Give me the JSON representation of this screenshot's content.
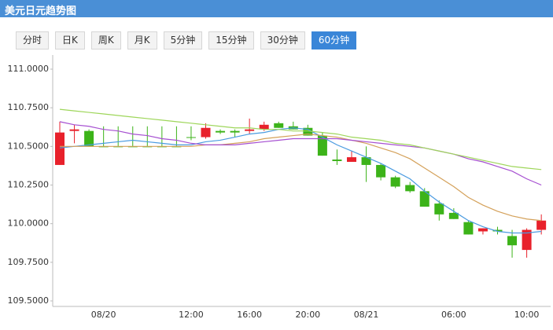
{
  "header": {
    "title": "美元日元趋势图"
  },
  "tabs": {
    "items": [
      "分时",
      "日K",
      "周K",
      "月K",
      "5分钟",
      "15分钟",
      "30分钟",
      "60分钟"
    ],
    "active": 7
  },
  "chart_data": {
    "type": "candlestick",
    "categories": [
      null,
      null,
      null,
      "08/20",
      null,
      null,
      null,
      null,
      null,
      "12:00",
      null,
      null,
      null,
      "16:00",
      null,
      null,
      null,
      "20:00",
      null,
      null,
      null,
      "08/21",
      null,
      null,
      null,
      null,
      null,
      "06:00",
      null,
      null,
      null,
      null,
      "10:00",
      null
    ],
    "open": [
      110.38,
      110.6,
      110.6,
      110.5,
      110.5,
      110.5,
      110.5,
      110.5,
      110.5,
      110.56,
      110.56,
      110.6,
      110.6,
      110.6,
      110.61,
      110.65,
      110.63,
      110.62,
      110.57,
      110.415,
      110.4,
      110.43,
      110.38,
      110.3,
      110.25,
      110.21,
      110.13,
      110.07,
      110.01,
      109.95,
      109.96,
      109.92,
      109.83,
      109.96
    ],
    "high": [
      110.66,
      110.64,
      110.61,
      110.63,
      110.63,
      110.63,
      110.63,
      110.63,
      110.63,
      110.63,
      110.65,
      110.61,
      110.61,
      110.68,
      110.66,
      110.66,
      110.66,
      110.64,
      110.59,
      110.48,
      110.47,
      110.5,
      110.39,
      110.31,
      110.27,
      110.23,
      110.15,
      110.1,
      110.02,
      109.97,
      109.98,
      109.96,
      109.97,
      110.06
    ],
    "low": [
      110.38,
      110.52,
      110.5,
      110.5,
      110.5,
      110.5,
      110.5,
      110.5,
      110.5,
      110.54,
      110.55,
      110.58,
      110.56,
      110.58,
      110.6,
      110.62,
      110.61,
      110.57,
      110.44,
      110.38,
      110.4,
      110.27,
      110.28,
      110.23,
      110.2,
      110.11,
      110.02,
      110.03,
      109.93,
      109.93,
      109.93,
      109.78,
      109.78,
      109.93
    ],
    "close": [
      110.59,
      110.61,
      110.5,
      110.5,
      110.5,
      110.5,
      110.5,
      110.5,
      110.5,
      110.56,
      110.62,
      110.59,
      110.59,
      110.61,
      110.64,
      110.62,
      110.61,
      110.57,
      110.44,
      110.405,
      110.43,
      110.38,
      110.3,
      110.24,
      110.21,
      110.11,
      110.06,
      110.03,
      109.93,
      109.97,
      109.95,
      109.86,
      109.96,
      110.02
    ],
    "up_color": "#e8212b",
    "down_color": "#3cb319",
    "lines": [
      {
        "color": "#4a9be0",
        "values": [
          110.49,
          110.5,
          110.51,
          110.52,
          110.53,
          110.54,
          110.53,
          110.52,
          110.51,
          110.51,
          110.53,
          110.54,
          110.56,
          110.58,
          110.59,
          110.61,
          110.62,
          110.61,
          110.56,
          110.51,
          110.47,
          110.43,
          110.39,
          110.34,
          110.29,
          110.21,
          110.14,
          110.08,
          110.02,
          109.98,
          109.95,
          109.94,
          109.94,
          109.95
        ]
      },
      {
        "color": "#d4a15a",
        "values": [
          110.5,
          110.5,
          110.5,
          110.5,
          110.5,
          110.5,
          110.5,
          110.5,
          110.5,
          110.5,
          110.51,
          110.51,
          110.52,
          110.53,
          110.55,
          110.56,
          110.57,
          110.58,
          110.57,
          110.56,
          110.54,
          110.52,
          110.49,
          110.46,
          110.42,
          110.36,
          110.3,
          110.24,
          110.17,
          110.12,
          110.08,
          110.05,
          110.03,
          110.02
        ]
      },
      {
        "color": "#a64fd1",
        "values": [
          110.66,
          110.64,
          110.63,
          110.61,
          110.6,
          110.58,
          110.57,
          110.55,
          110.54,
          110.52,
          110.51,
          110.51,
          110.51,
          110.52,
          110.53,
          110.54,
          110.55,
          110.55,
          110.55,
          110.55,
          110.54,
          110.53,
          110.52,
          110.51,
          110.5,
          110.49,
          110.47,
          110.45,
          110.42,
          110.4,
          110.37,
          110.34,
          110.29,
          110.25
        ]
      },
      {
        "color": "#9ed65a",
        "values": [
          110.74,
          110.73,
          110.72,
          110.71,
          110.7,
          110.69,
          110.68,
          110.67,
          110.66,
          110.65,
          110.64,
          110.63,
          110.62,
          110.62,
          110.61,
          110.61,
          110.6,
          110.6,
          110.59,
          110.58,
          110.56,
          110.55,
          110.54,
          110.52,
          110.51,
          110.49,
          110.47,
          110.45,
          110.43,
          110.41,
          110.39,
          110.37,
          110.36,
          110.35
        ]
      }
    ],
    "ylim": [
      109.5,
      111.0
    ],
    "yticks": [
      {
        "value": 109.5,
        "label": "109.5000"
      },
      {
        "value": 109.75,
        "label": "109.7500"
      },
      {
        "value": 110,
        "label": "110.0000"
      },
      {
        "value": 110.25,
        "label": "110.2500"
      },
      {
        "value": 110.5,
        "label": "110.5000"
      },
      {
        "value": 110.75,
        "label": "110.7500"
      },
      {
        "value": 111,
        "label": "111.0000"
      }
    ],
    "grid": false
  }
}
